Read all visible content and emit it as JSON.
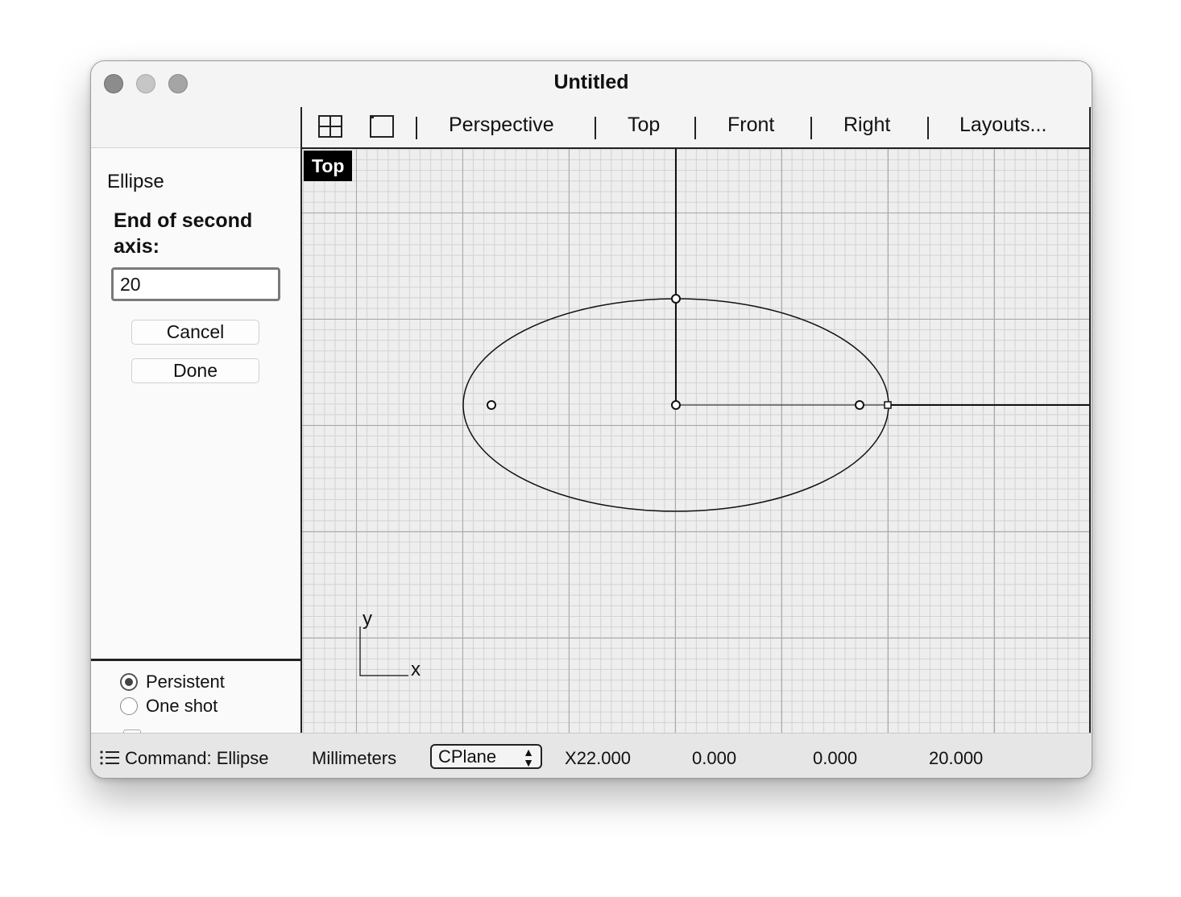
{
  "window": {
    "title": "Untitled"
  },
  "sidebar": {
    "command_name": "Ellipse",
    "prompt": "End of second axis:",
    "input_value": "20",
    "cancel_label": "Cancel",
    "done_label": "Done",
    "options": [
      {
        "label": "Persistent",
        "selected": true
      },
      {
        "label": "One shot",
        "selected": false
      }
    ]
  },
  "viewport_tabs": {
    "icons": [
      "four-viewports-icon",
      "single-viewport-icon"
    ],
    "items": [
      "Perspective",
      "Top",
      "Front",
      "Right",
      "Layouts..."
    ]
  },
  "viewport": {
    "label": "Top",
    "axis_x": "x",
    "axis_y": "y"
  },
  "statusbar": {
    "command": "Command: Ellipse",
    "units": "Millimeters",
    "cplane": "CPlane",
    "x_prefix": "X",
    "x": "22.000",
    "y": "0.000",
    "z": "0.000",
    "distance": "20.000"
  },
  "colors": {
    "grid_major": "#a8a8a8",
    "grid_minor": "#d2d2d2",
    "viewport_bg": "#eeeeee",
    "label_bg": "#000000"
  }
}
